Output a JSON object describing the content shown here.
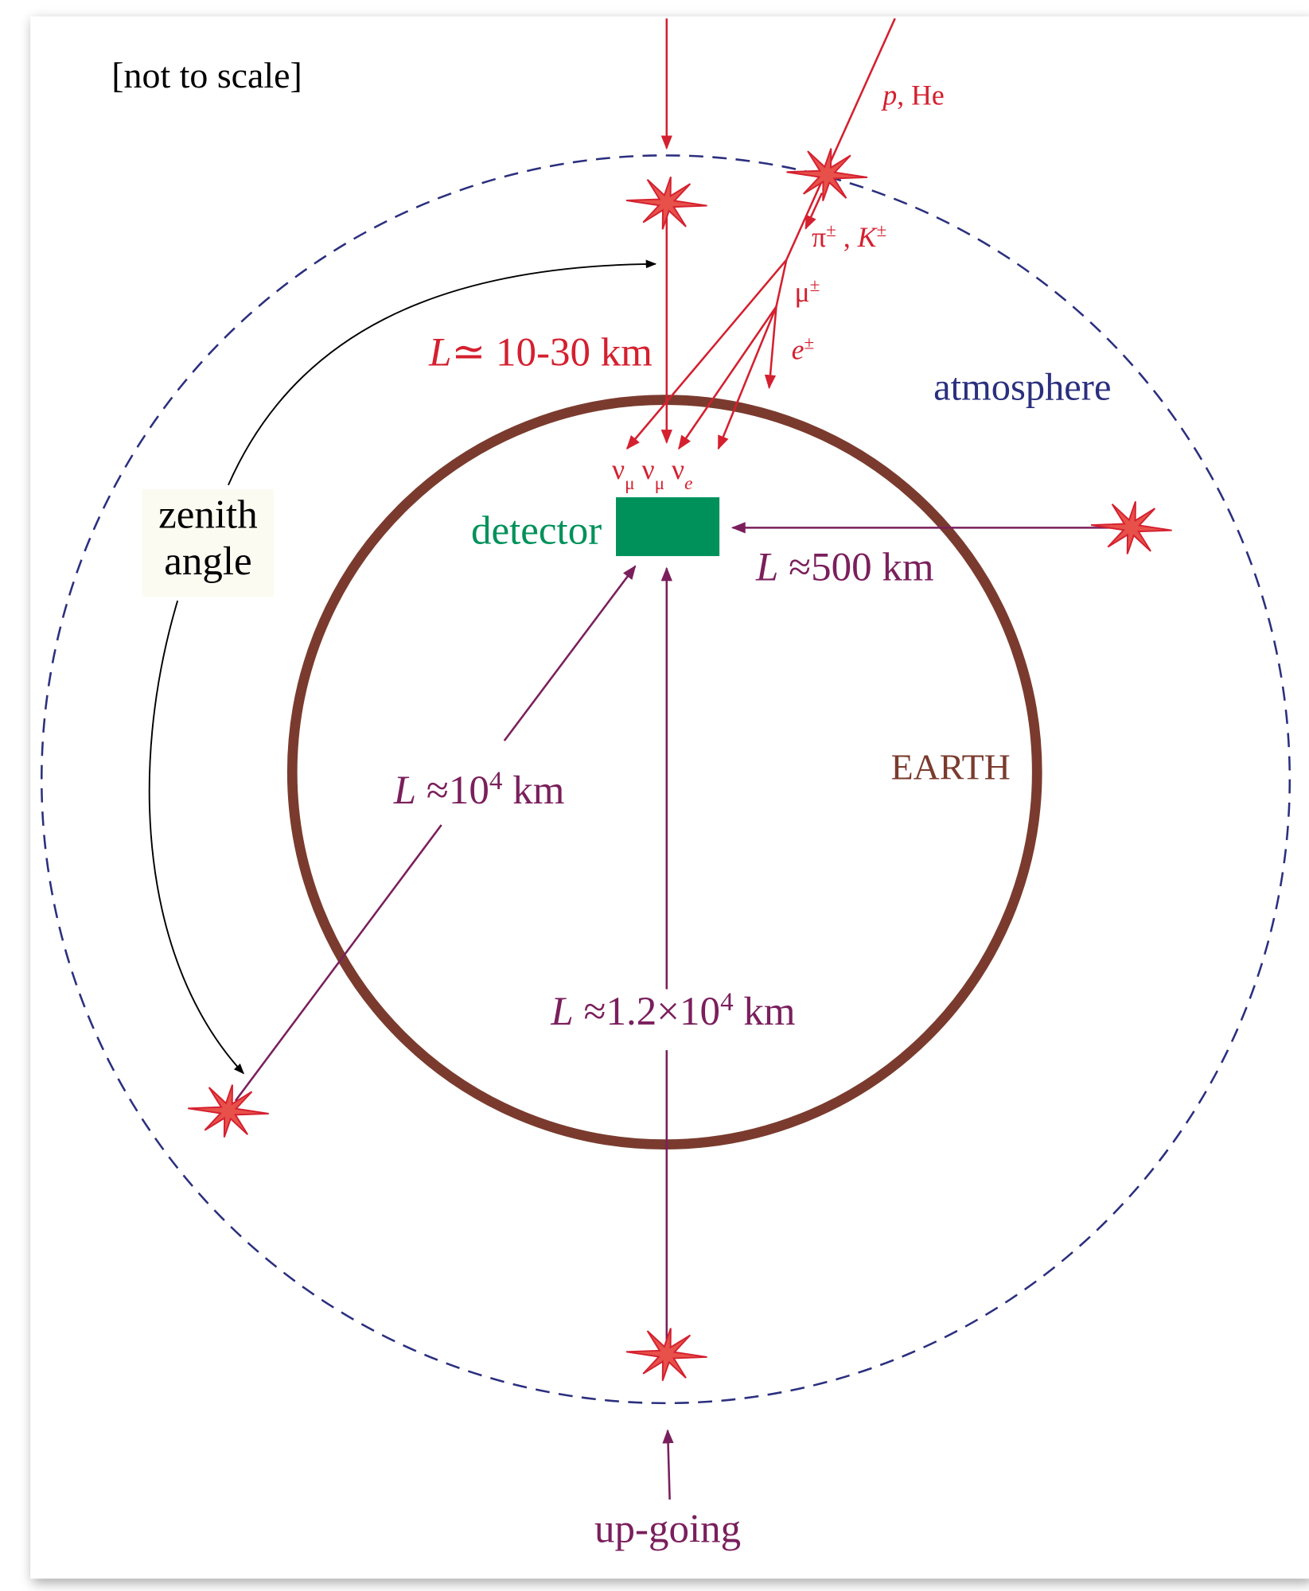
{
  "labels": {
    "not_to_scale": {
      "segments": [
        {
          "text": "[not to scale]"
        }
      ]
    },
    "primary": {
      "segments": [
        {
          "text": "p",
          "italic": true
        },
        {
          "text": ", He"
        }
      ]
    },
    "pi_k": {
      "segments": [
        {
          "text": "π"
        },
        {
          "text": "±",
          "sup": true
        },
        {
          "text": " , "
        },
        {
          "text": "K",
          "italic": true
        },
        {
          "text": "±",
          "sup": true
        }
      ]
    },
    "muon": {
      "segments": [
        {
          "text": "μ"
        },
        {
          "text": "±",
          "sup": true
        }
      ]
    },
    "electron": {
      "segments": [
        {
          "text": "e",
          "italic": true
        },
        {
          "text": "±",
          "sup": true
        }
      ]
    },
    "l_atm": {
      "segments": [
        {
          "text": "L",
          "italic": true
        },
        {
          "text": "≃ 10-30 km"
        }
      ]
    },
    "atmosphere": {
      "segments": [
        {
          "text": "atmosphere"
        }
      ]
    },
    "neutrinos": {
      "segments": [
        {
          "text": "ν"
        },
        {
          "text": "μ",
          "sub": true
        },
        {
          "text": " ν"
        },
        {
          "text": "μ",
          "sub": true
        },
        {
          "text": " ν"
        },
        {
          "text": "e",
          "sub": true,
          "italic": true
        }
      ]
    },
    "zenith": {
      "segments": [
        {
          "text": "zenith"
        }
      ]
    },
    "angle": {
      "segments": [
        {
          "text": "angle"
        }
      ]
    },
    "detector": {
      "segments": [
        {
          "text": "detector"
        }
      ]
    },
    "l_horizontal": {
      "segments": [
        {
          "text": "L",
          "italic": true
        },
        {
          "text": " ≈500 km"
        }
      ]
    },
    "earth": {
      "segments": [
        {
          "text": "EARTH"
        }
      ]
    },
    "l_diagonal": {
      "segments": [
        {
          "text": "L",
          "italic": true
        },
        {
          "text": " ≈10"
        },
        {
          "text": "4",
          "sup": true
        },
        {
          "text": " km"
        }
      ]
    },
    "l_upgoing": {
      "segments": [
        {
          "text": "L",
          "italic": true
        },
        {
          "text": " ≈1.2×10"
        },
        {
          "text": "4",
          "sup": true
        },
        {
          "text": " km"
        }
      ]
    },
    "up_going": {
      "segments": [
        {
          "text": "up-going"
        }
      ]
    }
  }
}
